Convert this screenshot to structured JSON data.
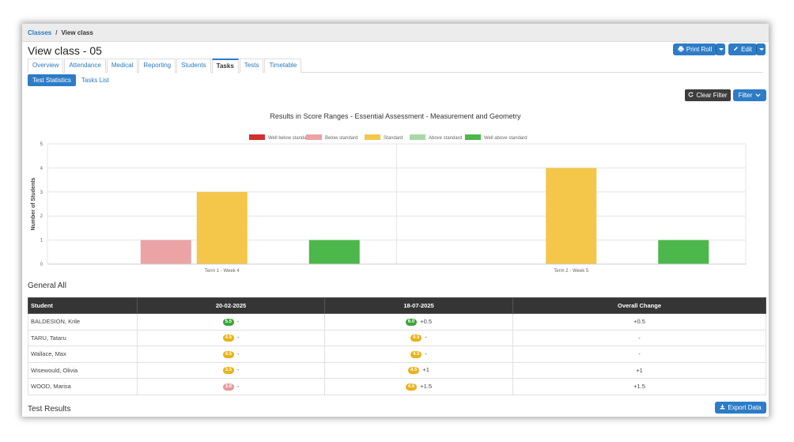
{
  "breadcrumb": {
    "parent": "Classes",
    "separator": "/",
    "current": "View class"
  },
  "page_title": "View class - 05",
  "header_buttons": {
    "print_roll": "Print Roll",
    "edit": "Edit"
  },
  "tabs": [
    {
      "label": "Overview",
      "active": false
    },
    {
      "label": "Attendance",
      "active": false
    },
    {
      "label": "Medical",
      "active": false
    },
    {
      "label": "Reporting",
      "active": false
    },
    {
      "label": "Students",
      "active": false
    },
    {
      "label": "Tasks",
      "active": true
    },
    {
      "label": "Tests",
      "active": false
    },
    {
      "label": "Timetable",
      "active": false
    }
  ],
  "subtabs": [
    {
      "label": "Test Statistics",
      "active": true
    },
    {
      "label": "Tasks List",
      "active": false
    }
  ],
  "toolbar": {
    "clear_filter": "Clear Filter",
    "filter": "Filter"
  },
  "chart_data": {
    "type": "bar",
    "title": "Results in Score Ranges - Essential Assessment - Measurement and Geometry",
    "xlabel": "",
    "ylabel": "Number of Students",
    "ylim": [
      0,
      5
    ],
    "yticks": [
      0,
      1,
      2,
      3,
      4,
      5
    ],
    "legend_position": "top-center",
    "grid": true,
    "categories": [
      "Term 1 - Week 4",
      "Term 2 - Week 5"
    ],
    "series": [
      {
        "name": "Well below standard",
        "color": "#d0312d",
        "values": [
          0,
          0
        ]
      },
      {
        "name": "Below standard",
        "color": "#eba3a5",
        "values": [
          1,
          0
        ]
      },
      {
        "name": "Standard",
        "color": "#f4c64a",
        "values": [
          3,
          4
        ]
      },
      {
        "name": "Above standard",
        "color": "#a8d8a6",
        "values": [
          0,
          0
        ]
      },
      {
        "name": "Well above standard",
        "color": "#4cb74a",
        "values": [
          1,
          1
        ]
      }
    ]
  },
  "general_section_title": "General All",
  "table": {
    "headers": [
      "Student",
      "20-02-2025",
      "18-07-2025",
      "Overall Change"
    ],
    "rows": [
      {
        "student": "BALDESION, Krile",
        "s1": "5.5",
        "s1_color": "#3aa63a",
        "c1": "-",
        "s2": "6.0",
        "s2_color": "#3aa63a",
        "c2": "+0.5",
        "overall": "+0.5"
      },
      {
        "student": "TARU, Tataru",
        "s1": "4.5",
        "s1_color": "#e8b21a",
        "c1": "-",
        "s2": "4.5",
        "s2_color": "#e8b21a",
        "c2": "-",
        "overall": "-"
      },
      {
        "student": "Wallace, Max",
        "s1": "4.5",
        "s1_color": "#e8b21a",
        "c1": "-",
        "s2": "4.5",
        "s2_color": "#e8b21a",
        "c2": "-",
        "overall": "-"
      },
      {
        "student": "Wisewould, Olivia",
        "s1": "3.5",
        "s1_color": "#e8b21a",
        "c1": "-",
        "s2": "4.5",
        "s2_color": "#e8b21a",
        "c2": "+1",
        "overall": "+1"
      },
      {
        "student": "WOOD, Marisa",
        "s1": "3.0",
        "s1_color": "#e49a9c",
        "c1": "-",
        "s2": "4.5",
        "s2_color": "#e8b21a",
        "c2": "+1.5",
        "overall": "+1.5"
      }
    ]
  },
  "test_results_title": "Test Results",
  "export_button": "Export Data"
}
